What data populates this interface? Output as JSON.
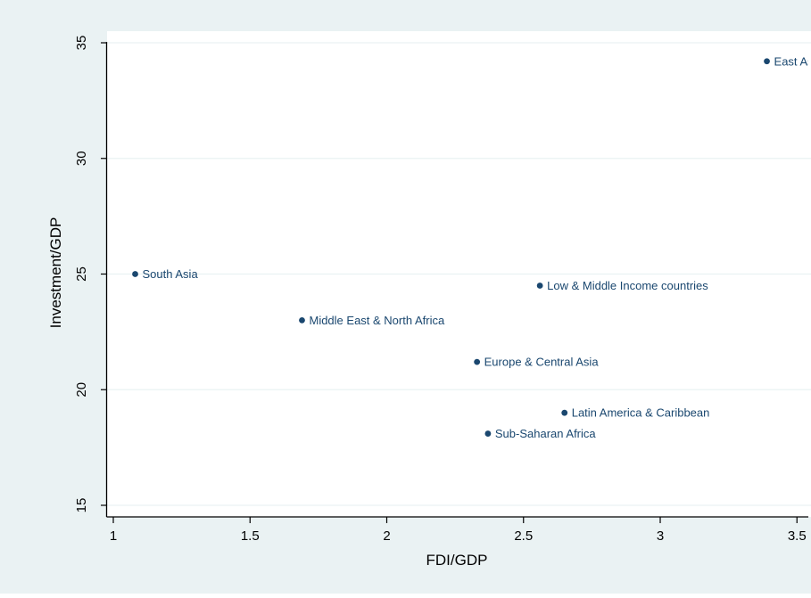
{
  "chart_data": {
    "type": "scatter",
    "title": "",
    "xlabel": "FDI/GDP",
    "ylabel": "Investment/GDP",
    "xlim": [
      0.95,
      3.55
    ],
    "ylim": [
      14.5,
      35.5
    ],
    "xticks": [
      {
        "value": 1,
        "label": "1"
      },
      {
        "value": 1.5,
        "label": "1.5"
      },
      {
        "value": 2,
        "label": "2"
      },
      {
        "value": 2.5,
        "label": "2.5"
      },
      {
        "value": 3,
        "label": "3"
      },
      {
        "value": 3.5,
        "label": "3.5"
      }
    ],
    "yticks": [
      {
        "value": 15,
        "label": "15"
      },
      {
        "value": 20,
        "label": "20"
      },
      {
        "value": 25,
        "label": "25"
      },
      {
        "value": 30,
        "label": "30"
      },
      {
        "value": 35,
        "label": "35"
      }
    ],
    "grid": "horizontal",
    "points": [
      {
        "label": "East Asia & Pacific",
        "x": 3.39,
        "y": 34.2
      },
      {
        "label": "South Asia",
        "x": 1.08,
        "y": 25.0
      },
      {
        "label": "Low & Middle Income countries",
        "x": 2.56,
        "y": 24.5
      },
      {
        "label": "Middle East & North Africa",
        "x": 1.69,
        "y": 23.0
      },
      {
        "label": "Europe & Central Asia",
        "x": 2.33,
        "y": 21.2
      },
      {
        "label": "Latin America & Caribbean",
        "x": 2.65,
        "y": 19.0
      },
      {
        "label": "Sub-Saharan Africa",
        "x": 2.37,
        "y": 18.1
      }
    ],
    "colors": {
      "outer_background": "#eaf2f3",
      "plot_background": "#ffffff",
      "gridline": "#eaf2f3",
      "axis": "#000000",
      "marker": "#1a476f",
      "marker_label": "#1a476f",
      "text": "#000000"
    }
  }
}
